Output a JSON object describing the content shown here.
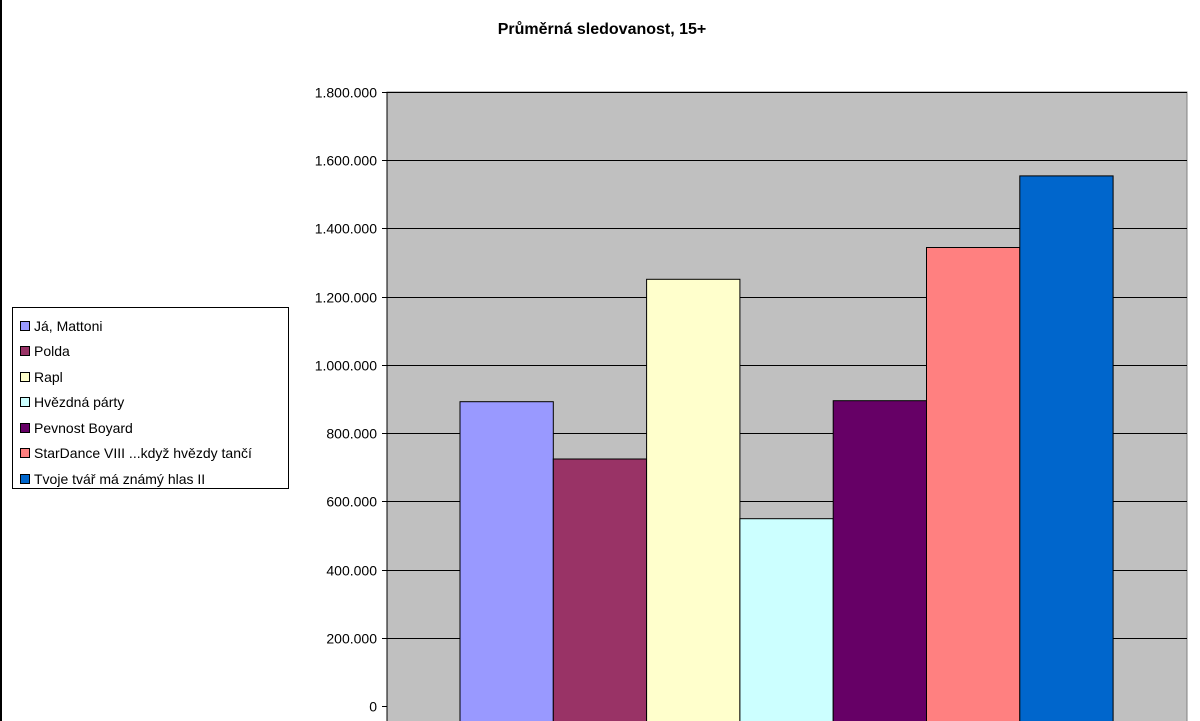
{
  "chart_data": {
    "type": "bar",
    "title": "Průměrná sledovanost, 15+",
    "xlabel": "",
    "ylabel": "",
    "ylim": [
      0,
      1800000
    ],
    "yticks": [
      "0",
      "200.000",
      "400.000",
      "600.000",
      "800.000",
      "1.000.000",
      "1.200.000",
      "1.400.000",
      "1.600.000",
      "1.800.000"
    ],
    "ytick_values": [
      0,
      200000,
      400000,
      600000,
      800000,
      1000000,
      1200000,
      1400000,
      1600000,
      1800000
    ],
    "grid": true,
    "legend_position": "left",
    "plot_background": "#c0c0c0",
    "series": [
      {
        "name": "Já, Mattoni",
        "value": 892000,
        "color": "#9999ff"
      },
      {
        "name": "Polda",
        "value": 724000,
        "color": "#993366"
      },
      {
        "name": "Rapl",
        "value": 1251000,
        "color": "#ffffcc"
      },
      {
        "name": "Hvězdná párty",
        "value": 549000,
        "color": "#ccffff"
      },
      {
        "name": "Pevnost Boyard",
        "value": 895000,
        "color": "#660066"
      },
      {
        "name": "StarDance VIII ...když hvězdy tančí",
        "value": 1344000,
        "color": "#ff8080"
      },
      {
        "name": "Tvoje tvář má známý hlas II",
        "value": 1554000,
        "color": "#0066cc"
      }
    ]
  }
}
